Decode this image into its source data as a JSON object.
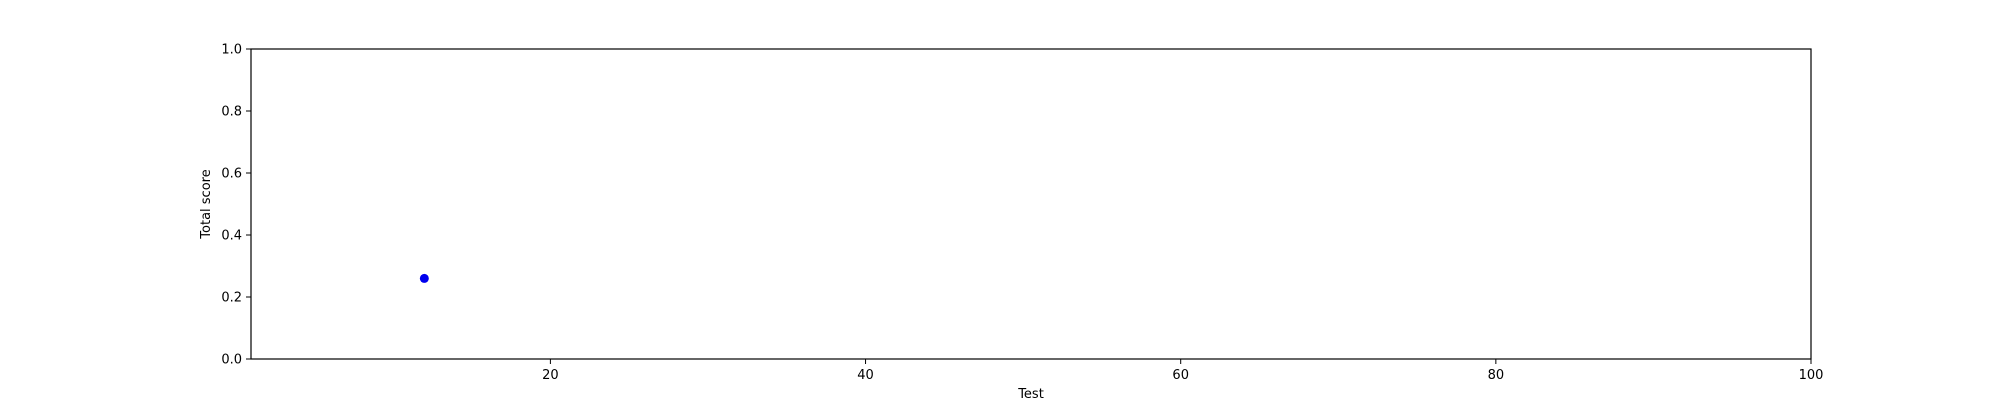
{
  "chart_data": {
    "type": "scatter",
    "title": "",
    "xlabel": "Test",
    "ylabel": "Total score",
    "xlim": [
      1,
      100
    ],
    "ylim": [
      0.0,
      1.0
    ],
    "xticks": [
      20,
      40,
      60,
      80,
      100
    ],
    "yticks": [
      0.0,
      0.2,
      0.4,
      0.6,
      0.8,
      1.0
    ],
    "xtick_labels": [
      "20",
      "40",
      "60",
      "80",
      "100"
    ],
    "ytick_labels": [
      "0.0",
      "0.2",
      "0.4",
      "0.6",
      "0.8",
      "1.0"
    ],
    "grid": false,
    "series": [
      {
        "color": "#0000ee",
        "points": [
          {
            "x": 12,
            "y": 0.26
          }
        ]
      }
    ]
  }
}
